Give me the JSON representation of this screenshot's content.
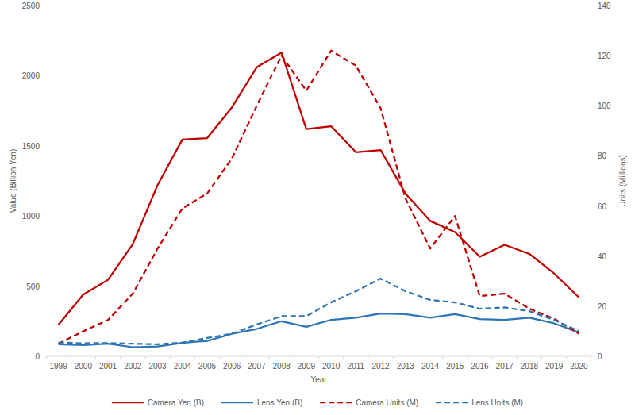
{
  "chart_data": {
    "type": "line",
    "x_label": "Year",
    "y_label": "Value (Billion Yen)",
    "y2_label": "Units (Millions)",
    "categories": [
      "1999",
      "2000",
      "2001",
      "2002",
      "2003",
      "2004",
      "2005",
      "2006",
      "2007",
      "2008",
      "2009",
      "2010",
      "2011",
      "2012",
      "2013",
      "2014",
      "2015",
      "2016",
      "2017",
      "2018",
      "2019",
      "2020"
    ],
    "ylim": [
      0,
      2500
    ],
    "yticks": [
      0,
      500,
      1000,
      1500,
      2000,
      2500
    ],
    "y2lim": [
      0,
      140
    ],
    "y2ticks": [
      0,
      20,
      40,
      60,
      80,
      100,
      120,
      140
    ],
    "grid": false,
    "legend": "bottom",
    "series": [
      {
        "name": "Camera Yen (B)",
        "color": "#c00000",
        "line_style": "solid",
        "values": [
          225,
          440,
          545,
          800,
          1220,
          1545,
          1555,
          1775,
          2060,
          2165,
          1620,
          1640,
          1455,
          1470,
          1160,
          965,
          885,
          710,
          795,
          730,
          590,
          420
        ]
      },
      {
        "name": "Lens Yen (B)",
        "color": "#2e75b6",
        "line_style": "solid",
        "values": [
          85,
          80,
          90,
          65,
          70,
          95,
          110,
          160,
          195,
          250,
          210,
          260,
          275,
          305,
          300,
          275,
          300,
          265,
          260,
          275,
          235,
          170
        ]
      },
      {
        "name": "Camera Units (M)",
        "color": "#c00000",
        "line_style": "dashed",
        "axis": "y2",
        "values": [
          5,
          10,
          14.5,
          25,
          43,
          59,
          65,
          79,
          100,
          120,
          106,
          122,
          116,
          99,
          63,
          43,
          56,
          24,
          25,
          19,
          15,
          9
        ]
      },
      {
        "name": "Lens Units (M)",
        "color": "#2e75b6",
        "line_style": "dashed",
        "axis": "y2",
        "values": [
          5.5,
          5.2,
          5.3,
          5,
          4.8,
          5.5,
          7.3,
          9,
          12.7,
          16,
          16,
          21.5,
          26,
          31,
          26,
          22.5,
          21.5,
          19,
          19.5,
          18,
          14.5,
          10
        ]
      }
    ]
  }
}
